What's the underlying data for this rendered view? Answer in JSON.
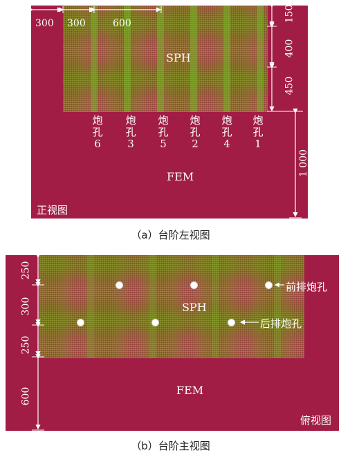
{
  "panel_a": {
    "dims_top": [
      "300",
      "300",
      "600"
    ],
    "dims_right": [
      "150",
      "400",
      "450"
    ],
    "dim_height": "1 000",
    "sph_label": "SPH",
    "fem_label": "FEM",
    "view_label": "正视图",
    "holes": [
      {
        "char1": "炮",
        "char2": "孔",
        "num": "6"
      },
      {
        "char1": "炮",
        "char2": "孔",
        "num": "3"
      },
      {
        "char1": "炮",
        "char2": "孔",
        "num": "5"
      },
      {
        "char1": "炮",
        "char2": "孔",
        "num": "2"
      },
      {
        "char1": "炮",
        "char2": "孔",
        "num": "4"
      },
      {
        "char1": "炮",
        "char2": "孔",
        "num": "1"
      }
    ],
    "caption": "（a）台阶左视图"
  },
  "panel_b": {
    "dims_left": [
      "250",
      "300",
      "250",
      "600"
    ],
    "sph_label": "SPH",
    "fem_label": "FEM",
    "view_label": "俯视图",
    "front_row_label": "前排炮孔",
    "back_row_label": "后排炮孔",
    "caption": "（b）台阶主视图"
  },
  "colors": {
    "fem": "#a11d45",
    "sph": "#8f6a32",
    "annotation": "#ffffff"
  }
}
